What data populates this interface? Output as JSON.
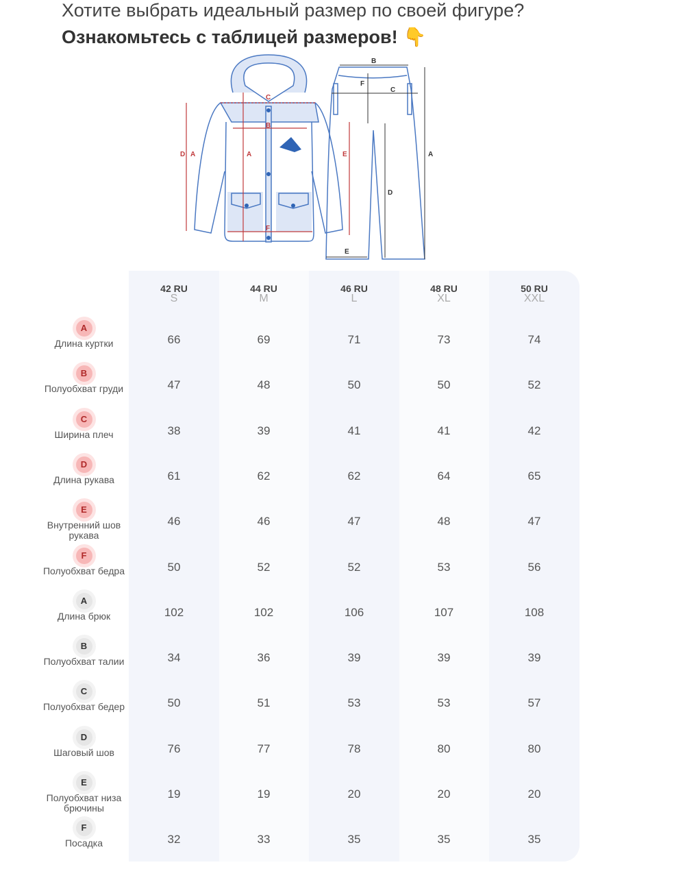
{
  "header": {
    "line1": "Хотите выбрать идеальный размер по своей фигуре?",
    "line2": "Ознакомьтесь с таблицей размеров!",
    "emoji": "👇"
  },
  "diagram": {
    "jacket_labels": [
      "A",
      "B",
      "C",
      "D",
      "E",
      "F"
    ],
    "pants_labels": [
      "A",
      "B",
      "C",
      "D",
      "E",
      "F"
    ],
    "jacket_color": "#c0393b",
    "pants_color": "#333333",
    "outline_color": "#4a78c2"
  },
  "sizes": [
    {
      "ru": "42 RU",
      "intl": "S"
    },
    {
      "ru": "44 RU",
      "intl": "M"
    },
    {
      "ru": "46 RU",
      "intl": "L"
    },
    {
      "ru": "48 RU",
      "intl": "XL"
    },
    {
      "ru": "50 RU",
      "intl": "XXL"
    }
  ],
  "rows": [
    {
      "letter": "A",
      "group": "jacket",
      "label": "Длина куртки",
      "values": [
        "66",
        "69",
        "71",
        "73",
        "74"
      ]
    },
    {
      "letter": "B",
      "group": "jacket",
      "label": "Полуобхват груди",
      "values": [
        "47",
        "48",
        "50",
        "50",
        "52"
      ]
    },
    {
      "letter": "C",
      "group": "jacket",
      "label": "Ширина плеч",
      "values": [
        "38",
        "39",
        "41",
        "41",
        "42"
      ]
    },
    {
      "letter": "D",
      "group": "jacket",
      "label": "Длина рукава",
      "values": [
        "61",
        "62",
        "62",
        "64",
        "65"
      ]
    },
    {
      "letter": "E",
      "group": "jacket",
      "label": "Внутренний шов рукава",
      "values": [
        "46",
        "46",
        "47",
        "48",
        "47"
      ]
    },
    {
      "letter": "F",
      "group": "jacket",
      "label": "Полуобхват бедра",
      "values": [
        "50",
        "52",
        "52",
        "53",
        "56"
      ]
    },
    {
      "letter": "A",
      "group": "pants",
      "label": "Длина брюк",
      "values": [
        "102",
        "102",
        "106",
        "107",
        "108"
      ]
    },
    {
      "letter": "B",
      "group": "pants",
      "label": "Полуобхват талии",
      "values": [
        "34",
        "36",
        "39",
        "39",
        "39"
      ]
    },
    {
      "letter": "C",
      "group": "pants",
      "label": "Полуобхват бедер",
      "values": [
        "50",
        "51",
        "53",
        "53",
        "57"
      ]
    },
    {
      "letter": "D",
      "group": "pants",
      "label": "Шаговый шов",
      "values": [
        "76",
        "77",
        "78",
        "80",
        "80"
      ]
    },
    {
      "letter": "E",
      "group": "pants",
      "label": "Полуобхват низа брючины",
      "values": [
        "19",
        "19",
        "20",
        "20",
        "20"
      ]
    },
    {
      "letter": "F",
      "group": "pants",
      "label": "Посадка",
      "values": [
        "32",
        "33",
        "35",
        "35",
        "35"
      ]
    }
  ]
}
